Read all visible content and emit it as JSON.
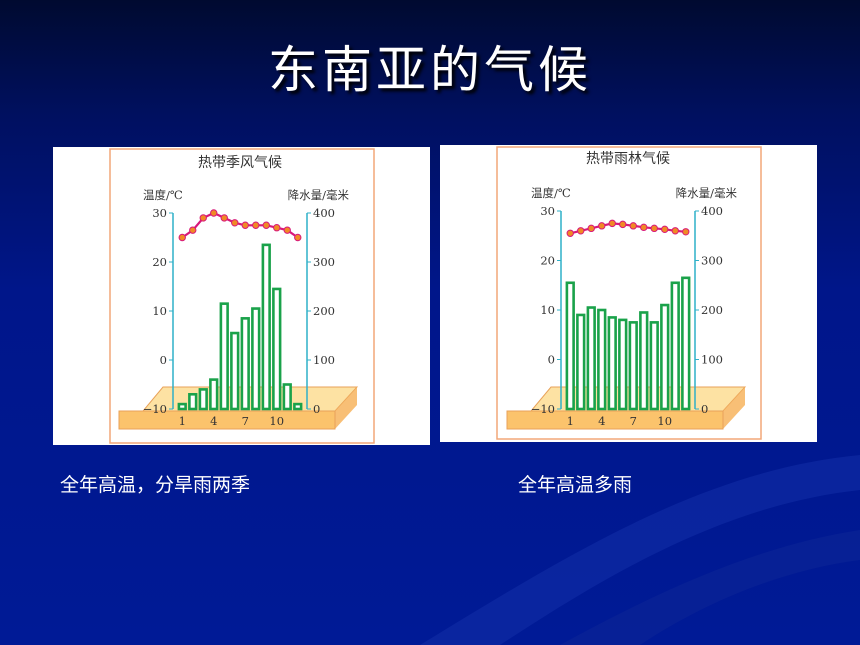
{
  "slide": {
    "title": "东南亚的气候",
    "caption_left": "全年高温，分旱雨两季",
    "caption_right": "全年高温多雨"
  },
  "colors": {
    "temp_line": "#d8197a",
    "temp_marker": "#f08a25",
    "bar_stroke": "#1aa24a",
    "axis": "#2fb0c8",
    "frame": "#f2a778"
  },
  "chart_data": [
    {
      "type": "bar+line",
      "title": "热带季风气候",
      "ylabel_left": "温度/℃",
      "ylabel_right": "降水量/毫米",
      "x": [
        1,
        2,
        3,
        4,
        5,
        6,
        7,
        8,
        9,
        10,
        11,
        12
      ],
      "x_ticks": [
        "1",
        "4",
        "7",
        "10"
      ],
      "y_left_ticks": [
        "30",
        "20",
        "10",
        "0",
        "−10"
      ],
      "y_right_ticks": [
        "400",
        "300",
        "200",
        "100",
        "0"
      ],
      "ylim_left": [
        -10,
        30
      ],
      "ylim_right": [
        0,
        400
      ],
      "series": [
        {
          "kind": "bar",
          "axis": "right",
          "values": [
            10,
            30,
            40,
            60,
            215,
            155,
            185,
            205,
            335,
            245,
            50,
            10
          ]
        },
        {
          "kind": "line",
          "axis": "left",
          "values": [
            25,
            26.5,
            29,
            30,
            29,
            28,
            27.5,
            27.5,
            27.5,
            27,
            26.5,
            25
          ]
        }
      ]
    },
    {
      "type": "bar+line",
      "title": "热带雨林气候",
      "ylabel_left": "温度/℃",
      "ylabel_right": "降水量/毫米",
      "x": [
        1,
        2,
        3,
        4,
        5,
        6,
        7,
        8,
        9,
        10,
        11,
        12
      ],
      "x_ticks": [
        "1",
        "4",
        "7",
        "10"
      ],
      "y_left_ticks": [
        "30",
        "20",
        "10",
        "0",
        "−10"
      ],
      "y_right_ticks": [
        "400",
        "300",
        "200",
        "100",
        "0"
      ],
      "ylim_left": [
        -10,
        30
      ],
      "ylim_right": [
        0,
        400
      ],
      "series": [
        {
          "kind": "bar",
          "axis": "right",
          "values": [
            255,
            190,
            205,
            200,
            185,
            180,
            175,
            195,
            175,
            210,
            255,
            265
          ]
        },
        {
          "kind": "line",
          "axis": "left",
          "values": [
            25.5,
            26,
            26.5,
            27,
            27.5,
            27.3,
            27,
            26.7,
            26.5,
            26.3,
            26,
            25.8
          ]
        }
      ]
    }
  ]
}
